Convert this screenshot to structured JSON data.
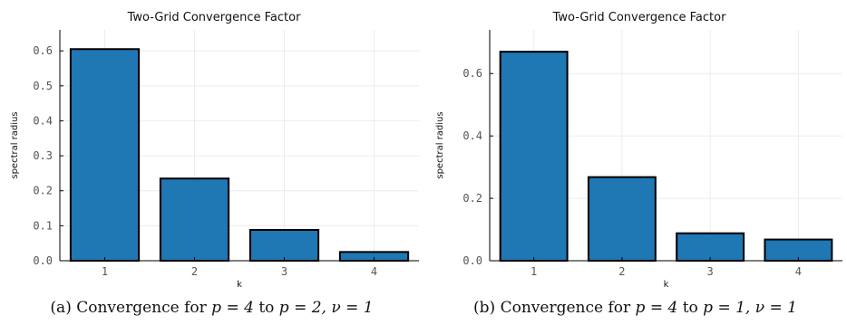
{
  "chart_data": [
    {
      "type": "bar",
      "title": "Two-Grid Convergence Factor",
      "xlabel": "k",
      "ylabel": "spectral radius",
      "categories": [
        "1",
        "2",
        "3",
        "4"
      ],
      "values": [
        0.605,
        0.235,
        0.088,
        0.025
      ],
      "ylim": [
        0,
        0.66
      ],
      "yticks": [
        0,
        0.1,
        0.2,
        0.3,
        0.4,
        0.5,
        0.6
      ],
      "ytick_labels": [
        "0.0",
        "0.1",
        "0.2",
        "0.3",
        "0.4",
        "0.5",
        "0.6"
      ],
      "bar_color": "#1f77b4",
      "grid": true,
      "legend": "none"
    },
    {
      "type": "bar",
      "title": "Two-Grid Convergence Factor",
      "xlabel": "k",
      "ylabel": "spectral radius",
      "categories": [
        "1",
        "2",
        "3",
        "4"
      ],
      "values": [
        0.67,
        0.268,
        0.088,
        0.068
      ],
      "ylim": [
        0,
        0.74
      ],
      "yticks": [
        0,
        0.2,
        0.4,
        0.6
      ],
      "ytick_labels": [
        "0.0",
        "0.2",
        "0.4",
        "0.6"
      ],
      "bar_color": "#1f77b4",
      "grid": true,
      "legend": "none"
    }
  ],
  "captions": [
    {
      "label": "(a)",
      "text": "Convergence for",
      "p_from": "p = 4",
      "to": "to",
      "p_to": "p = 2,",
      "nu": "ν = 1"
    },
    {
      "label": "(b)",
      "text": "Convergence for",
      "p_from": "p = 4",
      "to": "to",
      "p_to": "p = 1,",
      "nu": "ν = 1"
    }
  ]
}
